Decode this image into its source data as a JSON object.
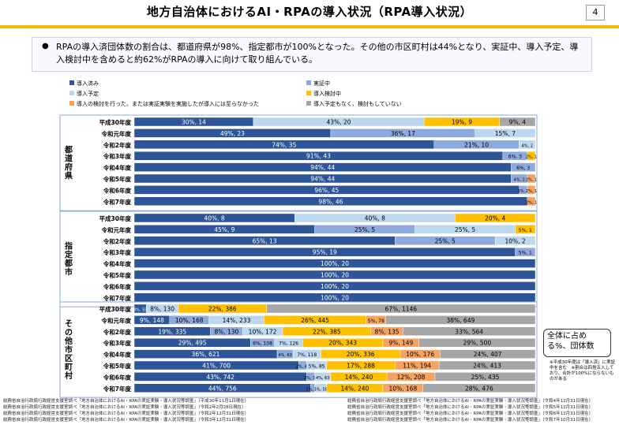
{
  "page": {
    "title": "地方自治体におけるAI・RPAの導入状況（RPA導入状況）",
    "page_number": "4",
    "summary": "RPAの導入済団体数の割合は、都道府県が98%、指定都市が100%となった。その他の市区町村は44%となり、実証中、導入予定、導入検討中を含めると約62%がRPAの導入に向けて取り組んでいる。",
    "bullet": "●",
    "note_box": "全体に占める%、団体数",
    "side_note": "※平成30年度は「導入済」に実証中を含む　※割合は四捨五入しており、合計が100%にならないものがある",
    "sources_left": [
      "総務省自治行政局行政経営支援室調べ「地方自治体におけるAI・RPAの実証実験・導入状況等調査」（平成30年11月1日現在）",
      "総務省自治行政局行政経営支援室調べ「地方自治体におけるAI・RPAの実証実験・導入状況等調査」（令和2年2月28日現在）",
      "総務省自治行政局行政経営支援室調べ「地方自治体におけるAI・RPAの実証実験・導入状況等調査」（令和2年12月31日現在）",
      "総務省自治行政局行政経営支援室調べ「地方自治体におけるAI・RPAの実証実験・導入状況等調査」（令和3年12月31日現在）"
    ],
    "sources_right": [
      "総務省自治行政局行政経営支援室調べ「地方自治体におけるAI・RPAの実証実験・導入状況等調査」（令和4年12月31日現在）",
      "総務省自治行政局行政経営支援室調べ「地方自治体におけるAI・RPAの実証実験・導入状況等調査」（令和5年12月31日現在）",
      "総務省自治行政局行政経営支援室調べ「地方自治体におけるAI・RPAの実証実験・導入状況等調査」（令和6年12月31日現在）",
      "総務省自治行政局行政経営支援室調べ「地方自治体におけるAI・RPAの実証実験・導入状況等調査」（令和7年10月31日現在）"
    ]
  },
  "chart_data": {
    "type": "bar",
    "orientation": "horizontal",
    "stacked": "percent",
    "legend": [
      {
        "key": "done",
        "name": "導入済み",
        "color": "#2e5597"
      },
      {
        "key": "trial",
        "name": "実証中",
        "color": "#8ea9db"
      },
      {
        "key": "planned",
        "name": "導入予定",
        "color": "#bdd7ee"
      },
      {
        "key": "consider",
        "name": "導入検討中",
        "color": "#ffc000"
      },
      {
        "key": "notreached",
        "name": "導入の検討を行った、または実証実験を実施したが導入には至らなかった",
        "color": "#f4a460"
      },
      {
        "key": "none",
        "name": "導入予定もなく、検討もしていない",
        "color": "#a6a6a6"
      }
    ],
    "categories": [
      "平成30年度",
      "令和元年度",
      "令和2年度",
      "令和3年度",
      "令和4年度",
      "令和5年度",
      "令和6年度",
      "令和7年度"
    ],
    "groups": [
      {
        "name": "都道府県",
        "rows": [
          [
            {
              "k": "done",
              "v": 30,
              "n": 14
            },
            {
              "k": "planned",
              "v": 43,
              "n": 20
            },
            {
              "k": "consider",
              "v": 19,
              "n": 9
            },
            {
              "k": "none",
              "v": 9,
              "n": 4
            }
          ],
          [
            {
              "k": "done",
              "v": 49,
              "n": 23
            },
            {
              "k": "trial",
              "v": 36,
              "n": 17
            },
            {
              "k": "planned",
              "v": 15,
              "n": 7
            }
          ],
          [
            {
              "k": "done",
              "v": 74,
              "n": 35
            },
            {
              "k": "trial",
              "v": 21,
              "n": 10
            },
            {
              "k": "planned",
              "v": 4,
              "n": 2
            }
          ],
          [
            {
              "k": "done",
              "v": 91,
              "n": 43
            },
            {
              "k": "trial",
              "v": 6,
              "n": 3
            },
            {
              "k": "consider",
              "v": 2,
              "n": 1
            }
          ],
          [
            {
              "k": "done",
              "v": 94,
              "n": 44
            },
            {
              "k": "trial",
              "v": 6,
              "n": 3
            }
          ],
          [
            {
              "k": "done",
              "v": 94,
              "n": 44
            },
            {
              "k": "trial",
              "v": 4,
              "n": 2
            },
            {
              "k": "notreached",
              "v": 2,
              "n": 1
            }
          ],
          [
            {
              "k": "done",
              "v": 96,
              "n": 45
            },
            {
              "k": "trial",
              "v": 2,
              "n": 1
            },
            {
              "k": "notreached",
              "v": 2,
              "n": 1
            }
          ],
          [
            {
              "k": "done",
              "v": 98,
              "n": 46
            },
            {
              "k": "notreached",
              "v": 2,
              "n": 1
            }
          ]
        ]
      },
      {
        "name": "指定都市",
        "rows": [
          [
            {
              "k": "done",
              "v": 40,
              "n": 8
            },
            {
              "k": "planned",
              "v": 40,
              "n": 8
            },
            {
              "k": "consider",
              "v": 20,
              "n": 4
            }
          ],
          [
            {
              "k": "done",
              "v": 45,
              "n": 9
            },
            {
              "k": "trial",
              "v": 25,
              "n": 5
            },
            {
              "k": "planned",
              "v": 25,
              "n": 5
            },
            {
              "k": "consider",
              "v": 5,
              "n": 1
            }
          ],
          [
            {
              "k": "done",
              "v": 65,
              "n": 13
            },
            {
              "k": "trial",
              "v": 25,
              "n": 5
            },
            {
              "k": "planned",
              "v": 10,
              "n": 2
            }
          ],
          [
            {
              "k": "done",
              "v": 95,
              "n": 19
            },
            {
              "k": "trial",
              "v": 5,
              "n": 1
            }
          ],
          [
            {
              "k": "done",
              "v": 100,
              "n": 20
            }
          ],
          [
            {
              "k": "done",
              "v": 100,
              "n": 20
            }
          ],
          [
            {
              "k": "done",
              "v": 100,
              "n": 20
            }
          ],
          [
            {
              "k": "done",
              "v": 100,
              "n": 20
            }
          ]
        ]
      },
      {
        "name": "その他市区町村",
        "rows": [
          [
            {
              "k": "done",
              "v": 3,
              "n": 55,
              "label": "3%, 55"
            },
            {
              "k": "planned",
              "v": 8,
              "n": 130
            },
            {
              "k": "consider",
              "v": 22,
              "n": 386
            },
            {
              "k": "none",
              "v": 67,
              "n": 1146
            }
          ],
          [
            {
              "k": "done",
              "v": 9,
              "n": 148
            },
            {
              "k": "trial",
              "v": 10,
              "n": 168
            },
            {
              "k": "planned",
              "v": 14,
              "n": 233
            },
            {
              "k": "consider",
              "v": 26,
              "n": 445
            },
            {
              "k": "notreached",
              "v": 5,
              "n": 78
            },
            {
              "k": "none",
              "v": 38,
              "n": 649
            }
          ],
          [
            {
              "k": "done",
              "v": 19,
              "n": 335
            },
            {
              "k": "trial",
              "v": 8,
              "n": 130
            },
            {
              "k": "planned",
              "v": 10,
              "n": 172
            },
            {
              "k": "consider",
              "v": 22,
              "n": 385
            },
            {
              "k": "notreached",
              "v": 8,
              "n": 135
            },
            {
              "k": "none",
              "v": 33,
              "n": 564
            }
          ],
          [
            {
              "k": "done",
              "v": 29,
              "n": 495
            },
            {
              "k": "trial",
              "v": 6,
              "n": 108
            },
            {
              "k": "planned",
              "v": 7,
              "n": 126
            },
            {
              "k": "consider",
              "v": 20,
              "n": 343
            },
            {
              "k": "notreached",
              "v": 9,
              "n": 149
            },
            {
              "k": "none",
              "v": 29,
              "n": 500
            }
          ],
          [
            {
              "k": "done",
              "v": 36,
              "n": 621
            },
            {
              "k": "trial",
              "v": 4,
              "n": 63
            },
            {
              "k": "planned",
              "v": 7,
              "n": 118
            },
            {
              "k": "consider",
              "v": 20,
              "n": 336
            },
            {
              "k": "notreached",
              "v": 10,
              "n": 176
            },
            {
              "k": "none",
              "v": 24,
              "n": 407
            }
          ],
          [
            {
              "k": "done",
              "v": 41,
              "n": 700
            },
            {
              "k": "trial",
              "v": 2,
              "n": 41
            },
            {
              "k": "planned",
              "v": 5,
              "n": 85
            },
            {
              "k": "consider",
              "v": 17,
              "n": 288
            },
            {
              "k": "notreached",
              "v": 11,
              "n": 194
            },
            {
              "k": "none",
              "v": 24,
              "n": 413
            }
          ],
          [
            {
              "k": "done",
              "v": 43,
              "n": 742
            },
            {
              "k": "trial",
              "v": 2,
              "n": 33
            },
            {
              "k": "planned",
              "v": 4,
              "n": 63
            },
            {
              "k": "consider",
              "v": 14,
              "n": 240
            },
            {
              "k": "notreached",
              "v": 12,
              "n": 208
            },
            {
              "k": "none",
              "v": 25,
              "n": 435
            }
          ],
          [
            {
              "k": "done",
              "v": 44,
              "n": 756
            },
            {
              "k": "trial",
              "v": 1,
              "n": 23
            },
            {
              "k": "planned",
              "v": 3,
              "n": 58
            },
            {
              "k": "consider",
              "v": 14,
              "n": 240
            },
            {
              "k": "notreached",
              "v": 10,
              "n": 168
            },
            {
              "k": "none",
              "v": 28,
              "n": 476
            }
          ]
        ]
      }
    ],
    "xlim": [
      0,
      100
    ]
  }
}
